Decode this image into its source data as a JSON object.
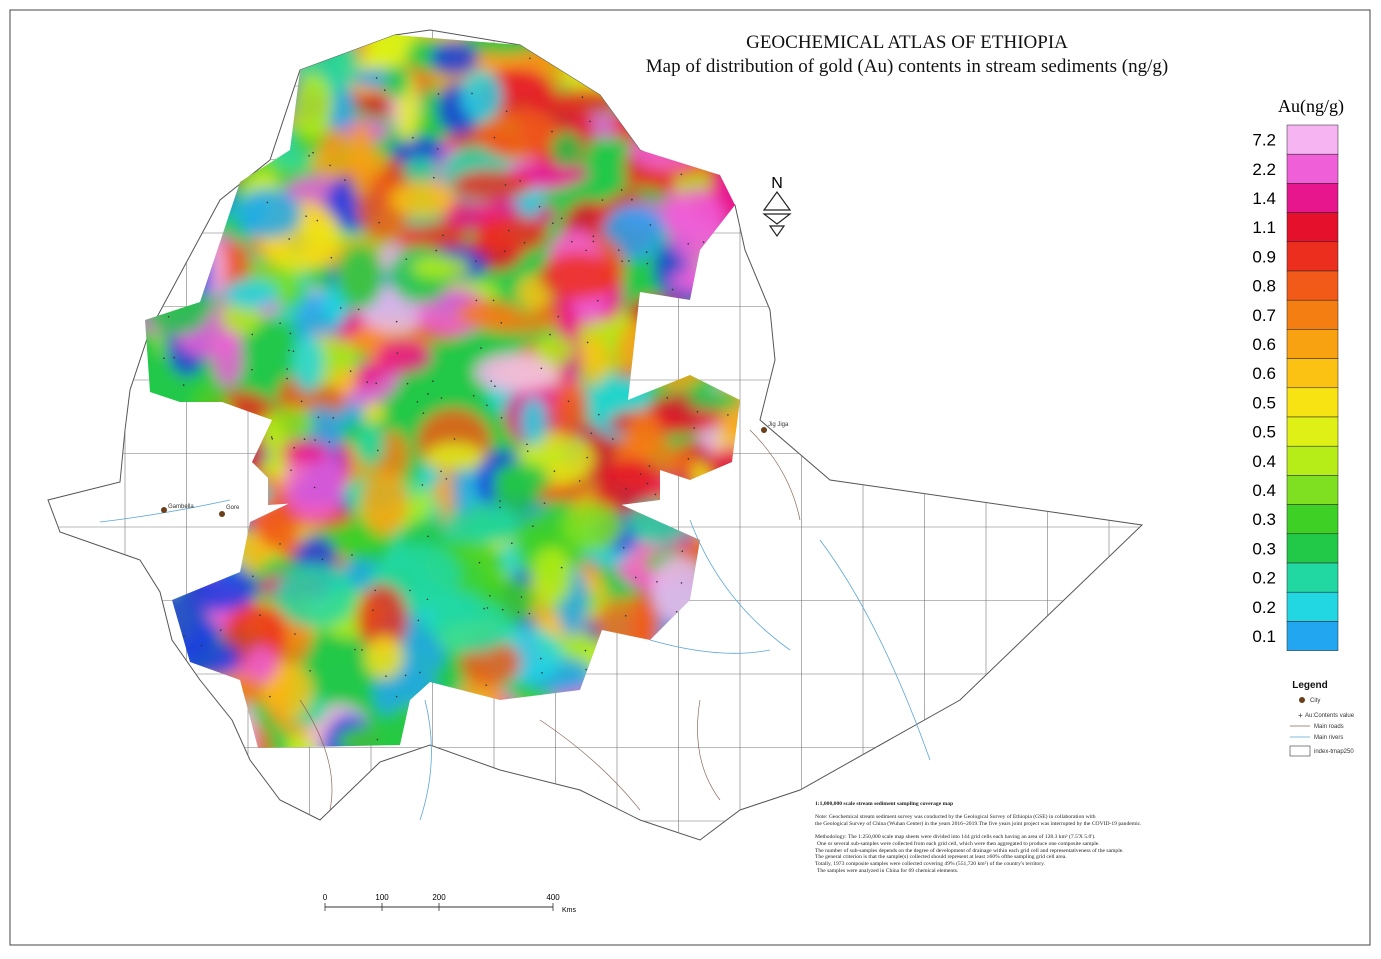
{
  "header": {
    "title": "GEOCHEMICAL ATLAS OF ETHIOPIA",
    "subtitle": "Map of distribution of gold (Au) contents in stream sediments (ng/g)"
  },
  "color_scale": {
    "title": "Au(ng/g)",
    "items": [
      {
        "label": "7.2",
        "color": "#f6b4f2"
      },
      {
        "label": "2.2",
        "color": "#ef5fd8"
      },
      {
        "label": "1.4",
        "color": "#e8168c"
      },
      {
        "label": "1.1",
        "color": "#e5102c"
      },
      {
        "label": "0.9",
        "color": "#ec2e1e"
      },
      {
        "label": "0.8",
        "color": "#f15a18"
      },
      {
        "label": "0.7",
        "color": "#f57e12"
      },
      {
        "label": "0.6",
        "color": "#f8a212"
      },
      {
        "label": "0.6",
        "color": "#fbc214"
      },
      {
        "label": "0.5",
        "color": "#f7e214"
      },
      {
        "label": "0.5",
        "color": "#def016"
      },
      {
        "label": "0.4",
        "color": "#b6ec18"
      },
      {
        "label": "0.4",
        "color": "#7ee020"
      },
      {
        "label": "0.3",
        "color": "#3ed024"
      },
      {
        "label": "0.3",
        "color": "#22c848"
      },
      {
        "label": "0.2",
        "color": "#22d8a2"
      },
      {
        "label": "0.2",
        "color": "#22d6e2"
      },
      {
        "label": "0.1",
        "color": "#22a6f0"
      }
    ]
  },
  "legend": {
    "title": "Legend",
    "items": [
      "City",
      "Au:Contents value",
      "Main roads",
      "Main rivers",
      "index-tmap250"
    ]
  },
  "north_arrow": "N",
  "scale_bar": {
    "ticks": [
      0,
      100,
      200,
      400
    ],
    "unit": "Kms"
  },
  "cities": [
    "Gambella",
    "Gore",
    "Jig Jiga"
  ],
  "notes": {
    "heading": "1:1,000,000 scale stream sediment sampling coverage map",
    "paragraphs": [
      "Note: Geochemical stream sediment survey was conducted by the Geological Survey of Ethiopia (GSE) in collaboration with",
      "the Geological Survey of China (Wuhan Center) in the years 2016~2019.The five years joint project was interrupted by the COVID-19 pandemic.",
      "Methodology: The 1:250,000 scale map sheets were divided into 144 grid cells each having an area of 128.3 km² (7.5'X 5.0').",
      "One or several sub-samples were collected from each grid cell, which were then aggregated to produce one composite sample.",
      "The number of sub-samples depends on the degree of development of drainage within each grid cell and representativeness of the sample.",
      "The general criterion is that the sample(s) collected should represent at least ≥60% ofthe sampling grid cell area.",
      "Totally, 1973 composite samples were collected covering 49% (551,720 km²) of the country's territory.",
      "The samples were analyzed in China for 69 chemical elements."
    ]
  }
}
